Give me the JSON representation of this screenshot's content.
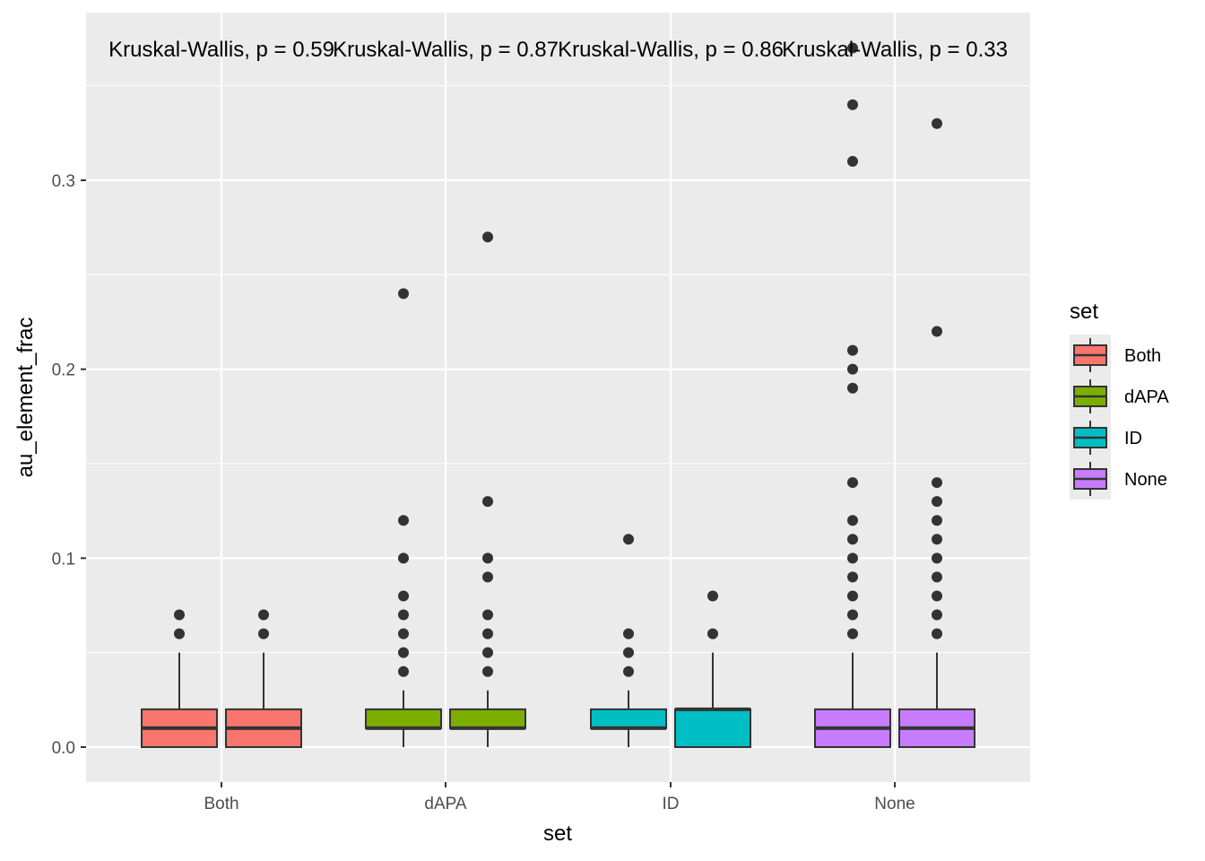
{
  "chart_data": {
    "type": "box",
    "xlabel": "set",
    "ylabel": "au_element_frac",
    "categories": [
      "Both",
      "dAPA",
      "ID",
      "None"
    ],
    "ylim": [
      -0.018,
      0.388
    ],
    "yticks": [
      {
        "value": 0.0,
        "label": "0.0"
      },
      {
        "value": 0.1,
        "label": "0.1"
      },
      {
        "value": 0.2,
        "label": "0.2"
      },
      {
        "value": 0.3,
        "label": "0.3"
      }
    ],
    "grid": true,
    "legend": {
      "title": "set",
      "position": "right",
      "entries": [
        {
          "name": "Both",
          "color": "#F8766D"
        },
        {
          "name": "dAPA",
          "color": "#7CAE00"
        },
        {
          "name": "ID",
          "color": "#00BFC4"
        },
        {
          "name": "None",
          "color": "#C77CFF"
        }
      ]
    },
    "annotations": [
      {
        "category": "Both",
        "text": "Kruskal-Wallis, p = 0.59"
      },
      {
        "category": "dAPA",
        "text": "Kruskal-Wallis, p = 0.87"
      },
      {
        "category": "ID",
        "text": "Kruskal-Wallis, p = 0.86"
      },
      {
        "category": "None",
        "text": "Kruskal-Wallis, p = 0.33"
      }
    ],
    "boxes": [
      {
        "category": "Both",
        "side": "left",
        "fill": "#F8766D",
        "q1": 0.0,
        "median": 0.01,
        "q3": 0.02,
        "whisker_low": 0.0,
        "whisker_high": 0.05,
        "outliers": [
          0.06,
          0.07
        ]
      },
      {
        "category": "Both",
        "side": "right",
        "fill": "#F8766D",
        "q1": 0.0,
        "median": 0.01,
        "q3": 0.02,
        "whisker_low": 0.0,
        "whisker_high": 0.05,
        "outliers": [
          0.06,
          0.07
        ]
      },
      {
        "category": "dAPA",
        "side": "left",
        "fill": "#7CAE00",
        "q1": 0.01,
        "median": 0.01,
        "q3": 0.02,
        "whisker_low": 0.0,
        "whisker_high": 0.03,
        "outliers": [
          0.04,
          0.05,
          0.06,
          0.07,
          0.08,
          0.1,
          0.12,
          0.24
        ]
      },
      {
        "category": "dAPA",
        "side": "right",
        "fill": "#7CAE00",
        "q1": 0.01,
        "median": 0.01,
        "q3": 0.02,
        "whisker_low": 0.0,
        "whisker_high": 0.03,
        "outliers": [
          0.04,
          0.05,
          0.06,
          0.07,
          0.09,
          0.1,
          0.13,
          0.27
        ]
      },
      {
        "category": "ID",
        "side": "left",
        "fill": "#00BFC4",
        "q1": 0.01,
        "median": 0.01,
        "q3": 0.02,
        "whisker_low": 0.0,
        "whisker_high": 0.03,
        "outliers": [
          0.04,
          0.05,
          0.06,
          0.11
        ]
      },
      {
        "category": "ID",
        "side": "right",
        "fill": "#00BFC4",
        "q1": 0.0,
        "median": 0.02,
        "q3": 0.02,
        "whisker_low": 0.0,
        "whisker_high": 0.05,
        "outliers": [
          0.06,
          0.08
        ]
      },
      {
        "category": "None",
        "side": "left",
        "fill": "#C77CFF",
        "q1": 0.0,
        "median": 0.01,
        "q3": 0.02,
        "whisker_low": 0.0,
        "whisker_high": 0.05,
        "outliers": [
          0.06,
          0.07,
          0.08,
          0.09,
          0.1,
          0.11,
          0.12,
          0.14,
          0.19,
          0.2,
          0.21,
          0.31,
          0.34,
          0.37
        ]
      },
      {
        "category": "None",
        "side": "right",
        "fill": "#C77CFF",
        "q1": 0.0,
        "median": 0.01,
        "q3": 0.02,
        "whisker_low": 0.0,
        "whisker_high": 0.05,
        "outliers": [
          0.06,
          0.07,
          0.08,
          0.09,
          0.1,
          0.11,
          0.12,
          0.13,
          0.14,
          0.22,
          0.33
        ]
      }
    ]
  }
}
